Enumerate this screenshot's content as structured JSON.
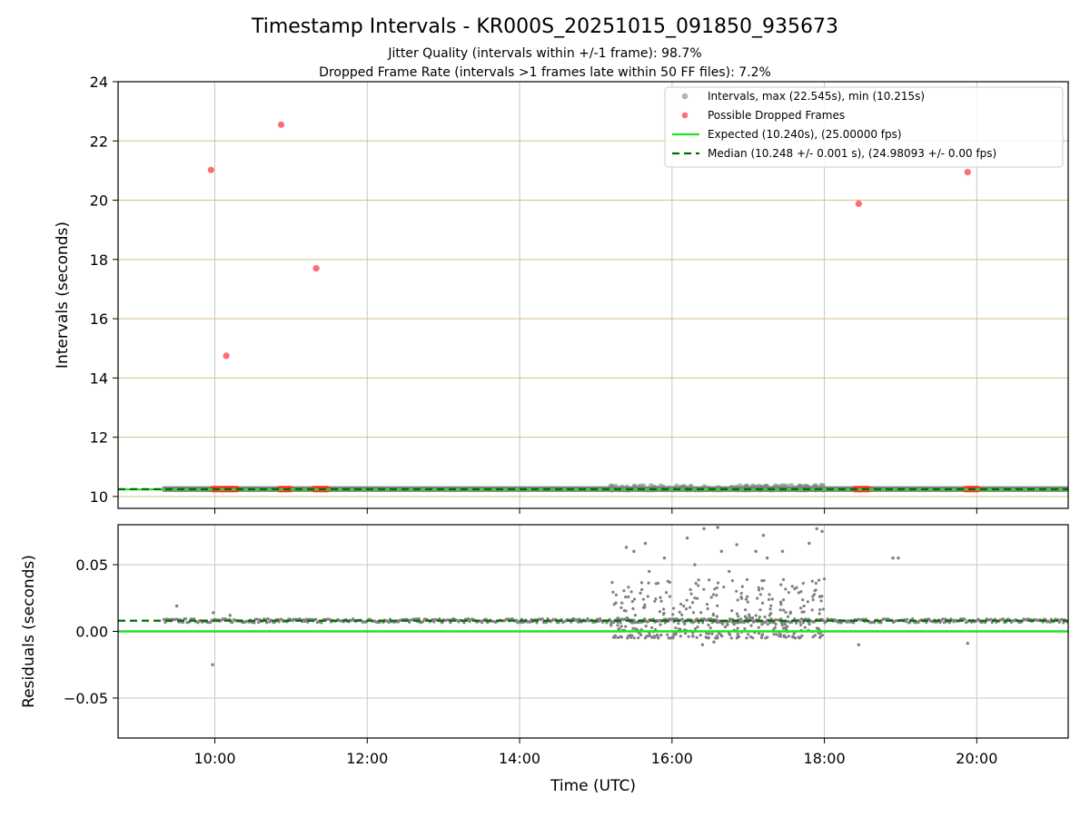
{
  "chart_data": {
    "type": "scatter",
    "title": "Timestamp Intervals - KR000S_20251015_091850_935673",
    "subtitle_lines": [
      "Jitter Quality (intervals within +/-1 frame): 98.7%",
      "Dropped Frame Rate (intervals >1 frames late within 50 FF files): 7.2%"
    ],
    "xlabel": "Time (UTC)",
    "x_unit": "hours (UTC)",
    "xlim": [
      8.73,
      21.2
    ],
    "x_ticks": [
      {
        "value": 10,
        "label": "10:00"
      },
      {
        "value": 12,
        "label": "12:00"
      },
      {
        "value": 14,
        "label": "14:00"
      },
      {
        "value": 16,
        "label": "16:00"
      },
      {
        "value": 18,
        "label": "18:00"
      },
      {
        "value": 20,
        "label": "20:00"
      }
    ],
    "top_panel": {
      "ylabel": "Intervals (seconds)",
      "ylim": [
        9.6,
        24
      ],
      "y_ticks": [
        10,
        12,
        14,
        16,
        18,
        20,
        22,
        24
      ],
      "y_gridlines": [
        10,
        12,
        14,
        16,
        18,
        20,
        22
      ],
      "x_gridlines": [
        10,
        12,
        14,
        16,
        18,
        20
      ],
      "legend_position": "upper right",
      "legend": [
        {
          "label": "Intervals, max (22.545s), min (10.215s)",
          "style": "gray-dot"
        },
        {
          "label": "Possible Dropped Frames",
          "style": "red-dot"
        },
        {
          "label": "Expected (10.240s), (25.00000 fps)",
          "style": "green-line"
        },
        {
          "label": "Median (10.248 +/- 0.001 s), (24.98093 +/- 0.00 fps)",
          "style": "darkgreen-dashed"
        }
      ],
      "expected_y": 10.24,
      "median_y": 10.248,
      "interval_band": {
        "x_start": 9.33,
        "x_end": 21.2,
        "y": 10.25
      },
      "interval_cluster": {
        "x_start": 15.2,
        "x_end": 18.0,
        "y_min": 10.23,
        "y_max": 10.37
      },
      "dropped_frames": [
        {
          "x": 9.95,
          "y": 21.02
        },
        {
          "x": 10.15,
          "y": 14.75
        },
        {
          "x": 10.87,
          "y": 22.55
        },
        {
          "x": 11.33,
          "y": 17.7
        },
        {
          "x": 18.45,
          "y": 19.88
        },
        {
          "x": 19.88,
          "y": 20.95
        }
      ],
      "dropped_frames_baseline": [
        [
          9.97,
          10.15
        ],
        [
          10.15,
          10.3
        ],
        [
          10.85,
          11.0
        ],
        [
          11.3,
          11.48
        ],
        [
          18.4,
          18.58
        ],
        [
          19.85,
          20.02
        ]
      ]
    },
    "bottom_panel": {
      "ylabel": "Residuals (seconds)",
      "ylim": [
        -0.08,
        0.08
      ],
      "y_ticks": [
        {
          "value": -0.05,
          "label": "−0.05"
        },
        {
          "value": 0.0,
          "label": "0.00"
        },
        {
          "value": 0.05,
          "label": "0.05"
        }
      ],
      "y_gridlines": [
        -0.05,
        0.05
      ],
      "x_gridlines": [
        10,
        12,
        14,
        16,
        18,
        20
      ],
      "expected_y": 0.0,
      "median_y": 0.008,
      "baseline_residual": 0.008,
      "outliers": [
        {
          "x": 9.5,
          "y": 0.019
        },
        {
          "x": 9.97,
          "y": -0.025
        },
        {
          "x": 9.98,
          "y": 0.014
        },
        {
          "x": 10.2,
          "y": 0.012
        },
        {
          "x": 15.4,
          "y": 0.063
        },
        {
          "x": 15.5,
          "y": 0.06
        },
        {
          "x": 15.65,
          "y": 0.066
        },
        {
          "x": 15.7,
          "y": 0.045
        },
        {
          "x": 15.9,
          "y": 0.055
        },
        {
          "x": 16.2,
          "y": 0.07
        },
        {
          "x": 16.3,
          "y": 0.05
        },
        {
          "x": 16.42,
          "y": 0.077
        },
        {
          "x": 16.6,
          "y": 0.078
        },
        {
          "x": 16.65,
          "y": 0.06
        },
        {
          "x": 16.75,
          "y": 0.045
        },
        {
          "x": 16.85,
          "y": 0.065
        },
        {
          "x": 17.1,
          "y": 0.06
        },
        {
          "x": 17.2,
          "y": 0.072
        },
        {
          "x": 17.25,
          "y": 0.055
        },
        {
          "x": 17.45,
          "y": 0.06
        },
        {
          "x": 17.8,
          "y": 0.066
        },
        {
          "x": 17.9,
          "y": 0.077
        },
        {
          "x": 17.97,
          "y": 0.075
        },
        {
          "x": 18.45,
          "y": -0.01
        },
        {
          "x": 18.9,
          "y": 0.055
        },
        {
          "x": 18.97,
          "y": 0.055
        },
        {
          "x": 19.88,
          "y": -0.009
        },
        {
          "x": 16.4,
          "y": -0.01
        },
        {
          "x": 16.55,
          "y": -0.008
        },
        {
          "x": 15.45,
          "y": -0.003
        }
      ],
      "dense_cluster": {
        "x_start": 15.2,
        "x_end": 18.0,
        "y_min": -0.005,
        "y_max": 0.04
      }
    },
    "colors": {
      "intervals": "#808080",
      "dropped": "#ff3030",
      "expected": "#22e222",
      "median": "#007000",
      "grid": "#c8c8c8",
      "hgrid_top": "#d4c080"
    }
  }
}
